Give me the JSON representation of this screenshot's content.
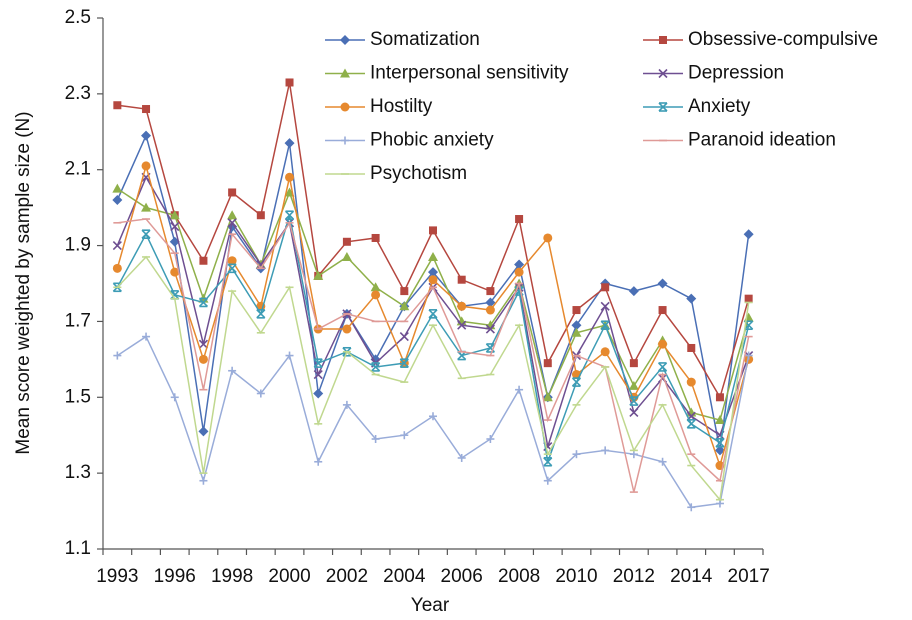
{
  "chart_data": {
    "type": "line",
    "x_label": "Year",
    "y_label": "Mean score weighted by sample size (N)",
    "categories": [
      "1993",
      null,
      "1996",
      null,
      "1998",
      null,
      "2000",
      null,
      "2002",
      null,
      "2004",
      null,
      "2006",
      null,
      "2008",
      null,
      "2010",
      null,
      "2012",
      null,
      "2014",
      null,
      "2017"
    ],
    "ylim": [
      1.1,
      2.5
    ],
    "yticks": [
      1.1,
      1.3,
      1.5,
      1.7,
      1.9,
      2.1,
      2.3,
      2.5
    ],
    "grid": false,
    "legend": "top",
    "series": [
      {
        "name": "Somatization",
        "color": "#4a6fb5",
        "marker": "diamond",
        "values": [
          2.02,
          2.19,
          1.91,
          1.41,
          1.95,
          1.84,
          2.17,
          1.51,
          1.72,
          1.6,
          1.74,
          1.83,
          1.74,
          1.75,
          1.85,
          1.5,
          1.69,
          1.8,
          1.78,
          1.8,
          1.76,
          1.36,
          1.93
        ]
      },
      {
        "name": "Obsessive-compulsive",
        "color": "#b5473f",
        "marker": "square",
        "values": [
          2.27,
          2.26,
          1.98,
          1.86,
          2.04,
          1.98,
          2.33,
          1.82,
          1.91,
          1.92,
          1.78,
          1.94,
          1.81,
          1.78,
          1.97,
          1.59,
          1.73,
          1.79,
          1.59,
          1.73,
          1.63,
          1.5,
          1.76
        ]
      },
      {
        "name": "Interpersonal sensitivity",
        "color": "#8fb04a",
        "marker": "triangle",
        "values": [
          2.05,
          2.0,
          1.98,
          1.76,
          1.98,
          1.85,
          2.04,
          1.82,
          1.87,
          1.79,
          1.74,
          1.87,
          1.7,
          1.69,
          1.8,
          1.5,
          1.67,
          1.69,
          1.53,
          1.65,
          1.46,
          1.44,
          1.71
        ]
      },
      {
        "name": "Depression",
        "color": "#6e4f91",
        "marker": "x",
        "values": [
          1.9,
          2.08,
          1.95,
          1.64,
          1.96,
          1.85,
          1.96,
          1.56,
          1.72,
          1.59,
          1.66,
          1.79,
          1.69,
          1.68,
          1.79,
          1.37,
          1.61,
          1.74,
          1.46,
          1.55,
          1.45,
          1.4,
          1.61
        ]
      },
      {
        "name": "Hostilty",
        "color": "#e6892e",
        "marker": "circle",
        "values": [
          1.84,
          2.11,
          1.83,
          1.6,
          1.86,
          1.74,
          2.08,
          1.68,
          1.68,
          1.77,
          1.59,
          1.81,
          1.74,
          1.73,
          1.83,
          1.92,
          1.56,
          1.62,
          1.5,
          1.64,
          1.54,
          1.32,
          1.6
        ]
      },
      {
        "name": "Anxiety",
        "color": "#3d9cb5",
        "marker": "asterisk",
        "values": [
          1.79,
          1.93,
          1.77,
          1.75,
          1.84,
          1.72,
          1.98,
          1.59,
          1.62,
          1.58,
          1.59,
          1.72,
          1.61,
          1.63,
          1.78,
          1.33,
          1.54,
          1.69,
          1.49,
          1.58,
          1.43,
          1.38,
          1.69
        ]
      },
      {
        "name": "Phobic anxiety",
        "color": "#99acd9",
        "marker": "plus",
        "values": [
          1.61,
          1.66,
          1.5,
          1.28,
          1.57,
          1.51,
          1.61,
          1.33,
          1.48,
          1.39,
          1.4,
          1.45,
          1.34,
          1.39,
          1.52,
          1.28,
          1.35,
          1.36,
          1.35,
          1.33,
          1.21,
          1.22,
          1.61
        ]
      },
      {
        "name": "Paranoid ideation",
        "color": "#df9a97",
        "marker": "dash",
        "values": [
          1.96,
          1.97,
          1.88,
          1.52,
          1.93,
          1.84,
          1.96,
          1.68,
          1.72,
          1.7,
          1.7,
          1.79,
          1.62,
          1.61,
          1.8,
          1.44,
          1.61,
          1.58,
          1.25,
          1.56,
          1.35,
          1.28,
          1.66
        ]
      },
      {
        "name": "Psychotism",
        "color": "#c0d88f",
        "marker": "dash",
        "values": [
          1.79,
          1.87,
          1.76,
          1.3,
          1.78,
          1.67,
          1.79,
          1.43,
          1.62,
          1.56,
          1.54,
          1.69,
          1.55,
          1.56,
          1.69,
          1.35,
          1.48,
          1.58,
          1.36,
          1.48,
          1.32,
          1.23,
          1.75
        ]
      }
    ]
  }
}
